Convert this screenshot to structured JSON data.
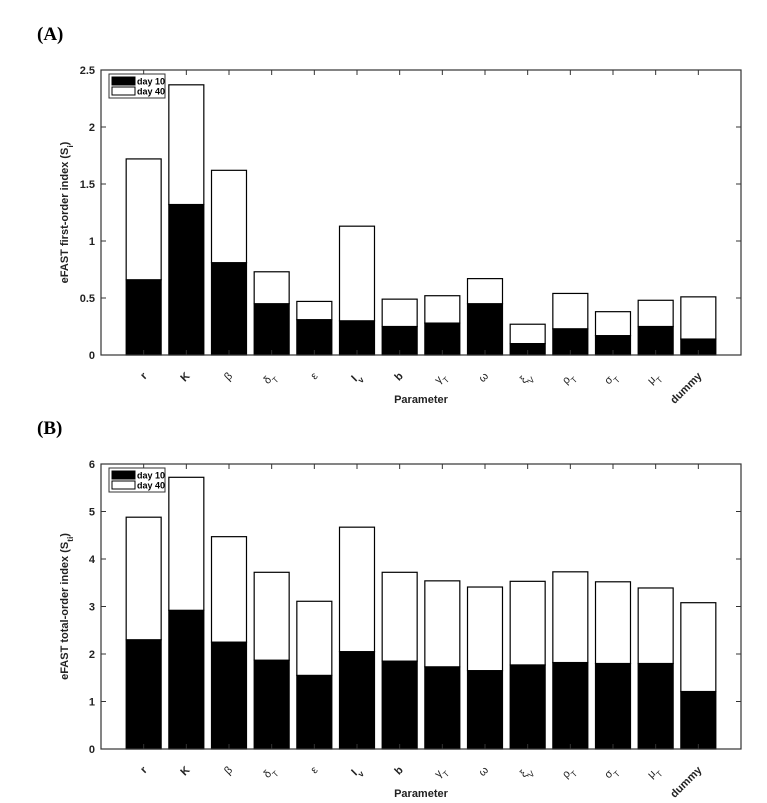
{
  "chart_data": [
    {
      "panel": "(A)",
      "type": "bar",
      "stacked": true,
      "title": "",
      "xlabel": "Parameter",
      "ylabel": "eFAST first-order index (S_{i})",
      "ylim": [
        0,
        2.5
      ],
      "yticks": [
        "0",
        "0.5",
        "1",
        "1.5",
        "2",
        "2.5"
      ],
      "ytick_values": [
        0,
        0.5,
        1,
        1.5,
        2,
        2.5
      ],
      "legend": {
        "position": "top-left",
        "entries": [
          "day 10",
          "day 40"
        ]
      },
      "categories": [
        "r",
        "K",
        "β",
        "δ_{T}",
        "ε",
        "I_{v}",
        "b",
        "γ_{T}",
        "ω",
        "ξ_{V}",
        "ρ_{T}",
        "σ_{T}",
        "μ_{T}",
        "dummy"
      ],
      "series": [
        {
          "name": "day 10",
          "color": "#000000",
          "values": [
            0.66,
            1.32,
            0.81,
            0.45,
            0.31,
            0.3,
            0.25,
            0.28,
            0.45,
            0.1,
            0.23,
            0.17,
            0.25,
            0.14
          ]
        },
        {
          "name": "day 40",
          "color": "#ffffff",
          "values": [
            1.06,
            1.05,
            0.81,
            0.28,
            0.16,
            0.83,
            0.24,
            0.24,
            0.22,
            0.17,
            0.31,
            0.21,
            0.23,
            0.37
          ]
        }
      ]
    },
    {
      "panel": "(B)",
      "type": "bar",
      "stacked": true,
      "title": "",
      "xlabel": "Parameter",
      "ylabel": "eFAST total-order index (S_{ti})",
      "ylim": [
        0,
        6
      ],
      "yticks": [
        "0",
        "1",
        "2",
        "3",
        "4",
        "5",
        "6"
      ],
      "ytick_values": [
        0,
        1,
        2,
        3,
        4,
        5,
        6
      ],
      "legend": {
        "position": "top-left",
        "entries": [
          "day 10",
          "day 40"
        ]
      },
      "categories": [
        "r",
        "K",
        "β",
        "δ_{T}",
        "ε",
        "I_{v}",
        "b",
        "γ_{T}",
        "ω",
        "ξ_{V}",
        "ρ_{T}",
        "σ_{T}",
        "μ_{T}",
        "dummy"
      ],
      "series": [
        {
          "name": "day 10",
          "color": "#000000",
          "values": [
            2.3,
            2.92,
            2.25,
            1.87,
            1.55,
            2.05,
            1.85,
            1.73,
            1.65,
            1.77,
            1.82,
            1.8,
            1.8,
            1.21
          ]
        },
        {
          "name": "day 40",
          "color": "#ffffff",
          "values": [
            2.58,
            2.8,
            2.22,
            1.85,
            1.56,
            2.62,
            1.87,
            1.81,
            1.76,
            1.76,
            1.91,
            1.72,
            1.59,
            1.87
          ]
        }
      ]
    }
  ]
}
